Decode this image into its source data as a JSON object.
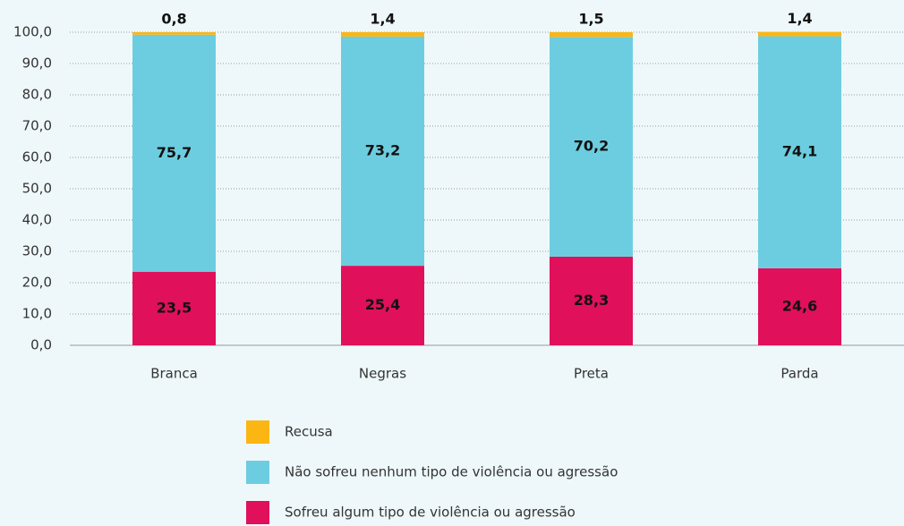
{
  "chart_data": {
    "type": "bar",
    "stacked": true,
    "categories": [
      "Branca",
      "Negras",
      "Preta",
      "Parda"
    ],
    "series": [
      {
        "name": "Recusa",
        "color": "#fbb614",
        "values": [
          0.8,
          1.4,
          1.5,
          1.4
        ],
        "value_labels": [
          "0,8",
          "1,4",
          "1,5",
          "1,4"
        ]
      },
      {
        "name": "Não sofreu nenhum tipo de violência ou agressão",
        "color": "#6dcde0",
        "values": [
          75.7,
          73.2,
          70.2,
          74.1
        ],
        "value_labels": [
          "75,7",
          "73,2",
          "70,2",
          "74,1"
        ]
      },
      {
        "name": "Sofreu algum tipo de violência ou agressão",
        "color": "#e0105a",
        "values": [
          23.5,
          25.4,
          28.3,
          24.6
        ],
        "value_labels": [
          "23,5",
          "25,4",
          "28,3",
          "24,6"
        ]
      }
    ],
    "ylim": [
      0,
      100
    ],
    "yticks": [
      {
        "value": 0,
        "label": "0,0"
      },
      {
        "value": 10,
        "label": "10,0"
      },
      {
        "value": 20,
        "label": "20,0"
      },
      {
        "value": 30,
        "label": "30,0"
      },
      {
        "value": 40,
        "label": "40,0"
      },
      {
        "value": 50,
        "label": "50,0"
      },
      {
        "value": 60,
        "label": "60,0"
      },
      {
        "value": 70,
        "label": "70,0"
      },
      {
        "value": 80,
        "label": "80,0"
      },
      {
        "value": 90,
        "label": "90,0"
      },
      {
        "value": 100,
        "label": "100,0"
      }
    ],
    "grid": true,
    "legend": "bottom"
  }
}
